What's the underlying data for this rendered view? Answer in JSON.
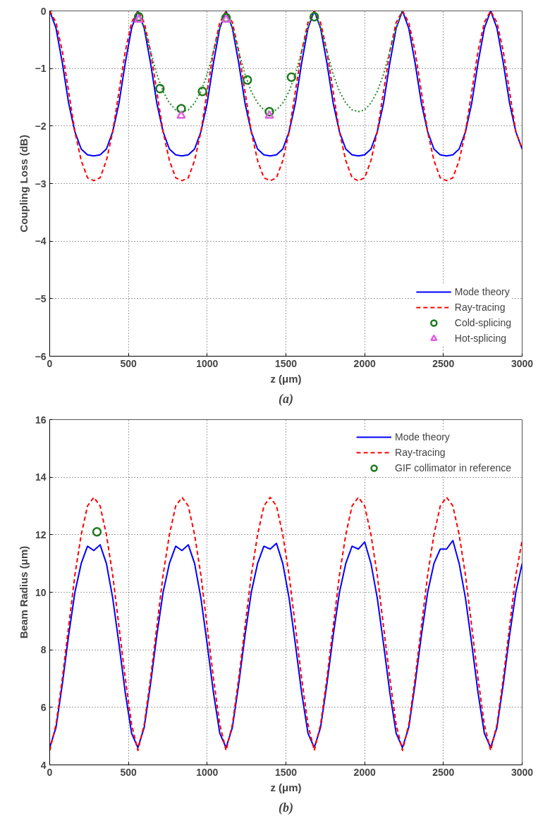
{
  "chart_data": [
    {
      "type": "line",
      "xlabel": "z (μm)",
      "ylabel": "Coupling Loss (dB)",
      "annotations": [
        "(a)"
      ],
      "xlim": [
        0,
        3000
      ],
      "ylim": [
        -6,
        0
      ],
      "xticks": [
        0,
        500,
        1000,
        1500,
        2000,
        2500,
        3000
      ],
      "yticks": [
        -6,
        -5,
        -4,
        -3,
        -2,
        -1,
        0
      ],
      "grid": true,
      "legend": "bottom right",
      "x": [
        0,
        40,
        80,
        120,
        160,
        200,
        240,
        280,
        320,
        360,
        400,
        440,
        480,
        520,
        560,
        600,
        640,
        680,
        720,
        760,
        800,
        840,
        880,
        920,
        960,
        1000,
        1040,
        1080,
        1120,
        1160,
        1200,
        1240,
        1280,
        1320,
        1360,
        1400,
        1440,
        1480,
        1520,
        1560,
        1600,
        1640,
        1680,
        1720,
        1760,
        1800,
        1840,
        1880,
        1920,
        1960,
        2000,
        2040,
        2080,
        2120,
        2160,
        2200,
        2240,
        2280,
        2320,
        2360,
        2400,
        2440,
        2480,
        2520,
        2560,
        2600,
        2640,
        2680,
        2720,
        2760,
        2800,
        2840,
        2880,
        2920,
        2960,
        3000
      ],
      "series": [
        {
          "name": "Mode theory",
          "type": "line",
          "color": "#0000ff",
          "line_style": "solid",
          "values": [
            0,
            -0.3,
            -0.9,
            -1.6,
            -2.1,
            -2.4,
            -2.5,
            -2.52,
            -2.5,
            -2.4,
            -2.1,
            -1.6,
            -0.9,
            -0.3,
            0,
            -0.3,
            -0.9,
            -1.6,
            -2.1,
            -2.4,
            -2.5,
            -2.52,
            -2.5,
            -2.4,
            -2.1,
            -1.6,
            -0.9,
            -0.3,
            0,
            -0.3,
            -0.9,
            -1.6,
            -2.1,
            -2.4,
            -2.5,
            -2.52,
            -2.5,
            -2.4,
            -2.1,
            -1.6,
            -0.9,
            -0.3,
            0,
            -0.3,
            -0.9,
            -1.6,
            -2.1,
            -2.4,
            -2.5,
            -2.52,
            -2.5,
            -2.4,
            -2.1,
            -1.6,
            -0.9,
            -0.3,
            0,
            -0.3,
            -0.9,
            -1.6,
            -2.1,
            -2.4,
            -2.5,
            -2.52,
            -2.5,
            -2.4,
            -2.1,
            -1.6,
            -0.9,
            -0.3,
            0,
            -0.3,
            -0.9,
            -1.6,
            -2.1,
            -2.4
          ]
        },
        {
          "name": "Ray-tracing",
          "type": "line",
          "color": "#ff0000",
          "line_style": "dashed",
          "values": [
            0,
            -0.2,
            -0.7,
            -1.4,
            -2.1,
            -2.6,
            -2.9,
            -2.95,
            -2.9,
            -2.6,
            -2.1,
            -1.4,
            -0.7,
            -0.2,
            0,
            -0.2,
            -0.7,
            -1.4,
            -2.1,
            -2.6,
            -2.9,
            -2.95,
            -2.9,
            -2.6,
            -2.1,
            -1.4,
            -0.7,
            -0.2,
            0,
            -0.2,
            -0.7,
            -1.4,
            -2.1,
            -2.6,
            -2.9,
            -2.95,
            -2.9,
            -2.6,
            -2.1,
            -1.4,
            -0.7,
            -0.2,
            0,
            -0.2,
            -0.7,
            -1.4,
            -2.1,
            -2.6,
            -2.9,
            -2.95,
            -2.9,
            -2.6,
            -2.1,
            -1.4,
            -0.7,
            -0.2,
            0,
            -0.2,
            -0.7,
            -1.4,
            -2.1,
            -2.6,
            -2.9,
            -2.95,
            -2.9,
            -2.6,
            -2.1,
            -1.4,
            -0.7,
            -0.2,
            0,
            -0.2,
            -0.7,
            -1.4,
            -2.1,
            -2.4
          ]
        },
        {
          "type": "line",
          "color": "#228b22",
          "line_style": "dotted",
          "x": [
            560,
            600,
            640,
            680,
            720,
            760,
            800,
            840,
            880,
            920,
            960,
            1000,
            1040,
            1080,
            1120,
            1160,
            1200,
            1240,
            1280,
            1320,
            1360,
            1400,
            1440,
            1480,
            1520,
            1560,
            1600,
            1640,
            1680,
            1720,
            1760,
            1800,
            1840,
            1880,
            1920,
            1960,
            2000,
            2040,
            2080,
            2120,
            2160,
            2200,
            2240
          ],
          "values": [
            0,
            -0.3,
            -0.7,
            -1.1,
            -1.4,
            -1.6,
            -1.72,
            -1.75,
            -1.72,
            -1.6,
            -1.4,
            -1.1,
            -0.7,
            -0.3,
            0,
            -0.3,
            -0.7,
            -1.1,
            -1.4,
            -1.6,
            -1.72,
            -1.75,
            -1.72,
            -1.6,
            -1.4,
            -1.1,
            -0.7,
            -0.3,
            0,
            -0.3,
            -0.7,
            -1.1,
            -1.4,
            -1.6,
            -1.72,
            -1.75,
            -1.72,
            -1.6,
            -1.4,
            -1.1,
            -0.7,
            -0.3,
            0
          ]
        },
        {
          "name": "Cold-splicing",
          "type": "scatter",
          "marker": "circle",
          "color": "#1e7a1e",
          "x": [
            565,
            700,
            835,
            970,
            1120,
            1255,
            1395,
            1535,
            1680
          ],
          "values": [
            -0.1,
            -1.35,
            -1.7,
            -1.4,
            -0.12,
            -1.2,
            -1.75,
            -1.15,
            -0.1
          ]
        },
        {
          "name": "Hot-splicing",
          "type": "scatter",
          "marker": "triangle",
          "color": "#e060e0",
          "x": [
            565,
            835,
            1120,
            1395
          ],
          "values": [
            -0.15,
            -1.82,
            -0.15,
            -1.82
          ]
        }
      ]
    },
    {
      "type": "line",
      "xlabel": "z (μm)",
      "ylabel": "Beam Radius (μm)",
      "annotations": [
        "(b)"
      ],
      "xlim": [
        0,
        3000
      ],
      "ylim": [
        4,
        16
      ],
      "xticks": [
        0,
        500,
        1000,
        1500,
        2000,
        2500,
        3000
      ],
      "yticks": [
        4,
        6,
        8,
        10,
        12,
        14,
        16
      ],
      "grid": true,
      "legend": "top right",
      "x": [
        0,
        40,
        80,
        120,
        160,
        200,
        240,
        280,
        320,
        360,
        400,
        440,
        480,
        520,
        560,
        600,
        640,
        680,
        720,
        760,
        800,
        840,
        880,
        920,
        960,
        1000,
        1040,
        1080,
        1120,
        1160,
        1200,
        1240,
        1280,
        1320,
        1360,
        1400,
        1440,
        1480,
        1520,
        1560,
        1600,
        1640,
        1680,
        1720,
        1760,
        1800,
        1840,
        1880,
        1920,
        1960,
        2000,
        2040,
        2080,
        2120,
        2160,
        2200,
        2240,
        2280,
        2320,
        2360,
        2400,
        2440,
        2480,
        2520,
        2560,
        2600,
        2640,
        2680,
        2720,
        2760,
        2800,
        2840,
        2880,
        2920,
        2960,
        3000
      ],
      "series": [
        {
          "name": "Mode theory",
          "type": "line",
          "color": "#0000ff",
          "line_style": "solid",
          "values": [
            4.6,
            5.3,
            6.8,
            8.5,
            10.0,
            11.0,
            11.6,
            11.45,
            11.65,
            11.0,
            9.8,
            8.2,
            6.5,
            5.1,
            4.6,
            5.3,
            6.8,
            8.5,
            10.0,
            11.0,
            11.6,
            11.45,
            11.65,
            11.0,
            9.8,
            8.2,
            6.5,
            5.1,
            4.6,
            5.3,
            6.8,
            8.5,
            10.0,
            11.0,
            11.6,
            11.5,
            11.7,
            11.0,
            9.8,
            8.2,
            6.5,
            5.1,
            4.6,
            5.3,
            6.8,
            8.5,
            10.0,
            11.0,
            11.6,
            11.5,
            11.75,
            11.0,
            9.8,
            8.2,
            6.5,
            5.1,
            4.6,
            5.3,
            6.8,
            8.5,
            10.0,
            11.0,
            11.5,
            11.5,
            11.8,
            11.0,
            9.8,
            8.2,
            6.5,
            5.1,
            4.6,
            5.3,
            6.8,
            8.5,
            10.0,
            11.0
          ]
        },
        {
          "name": "Ray-tracing",
          "type": "line",
          "color": "#ff0000",
          "line_style": "dashed",
          "values": [
            4.5,
            5.4,
            7.0,
            8.8,
            10.6,
            12.0,
            13.0,
            13.3,
            13.0,
            12.0,
            10.6,
            8.8,
            7.0,
            5.4,
            4.5,
            5.4,
            7.0,
            8.8,
            10.6,
            12.0,
            13.0,
            13.3,
            13.0,
            12.0,
            10.6,
            8.8,
            7.0,
            5.4,
            4.5,
            5.4,
            7.0,
            8.8,
            10.6,
            12.0,
            13.0,
            13.3,
            13.0,
            12.0,
            10.6,
            8.8,
            7.0,
            5.4,
            4.5,
            5.4,
            7.0,
            8.8,
            10.6,
            12.0,
            13.0,
            13.3,
            13.0,
            12.0,
            10.6,
            8.8,
            7.0,
            5.4,
            4.5,
            5.4,
            7.0,
            8.8,
            10.6,
            12.0,
            13.0,
            13.3,
            13.0,
            12.0,
            10.6,
            8.8,
            7.0,
            5.4,
            4.5,
            5.4,
            7.0,
            8.8,
            10.6,
            11.8
          ]
        },
        {
          "name": "GIF collimator in reference",
          "type": "scatter",
          "marker": "circle",
          "color": "#1e7a1e",
          "x": [
            300
          ],
          "values": [
            12.1
          ]
        }
      ]
    }
  ]
}
